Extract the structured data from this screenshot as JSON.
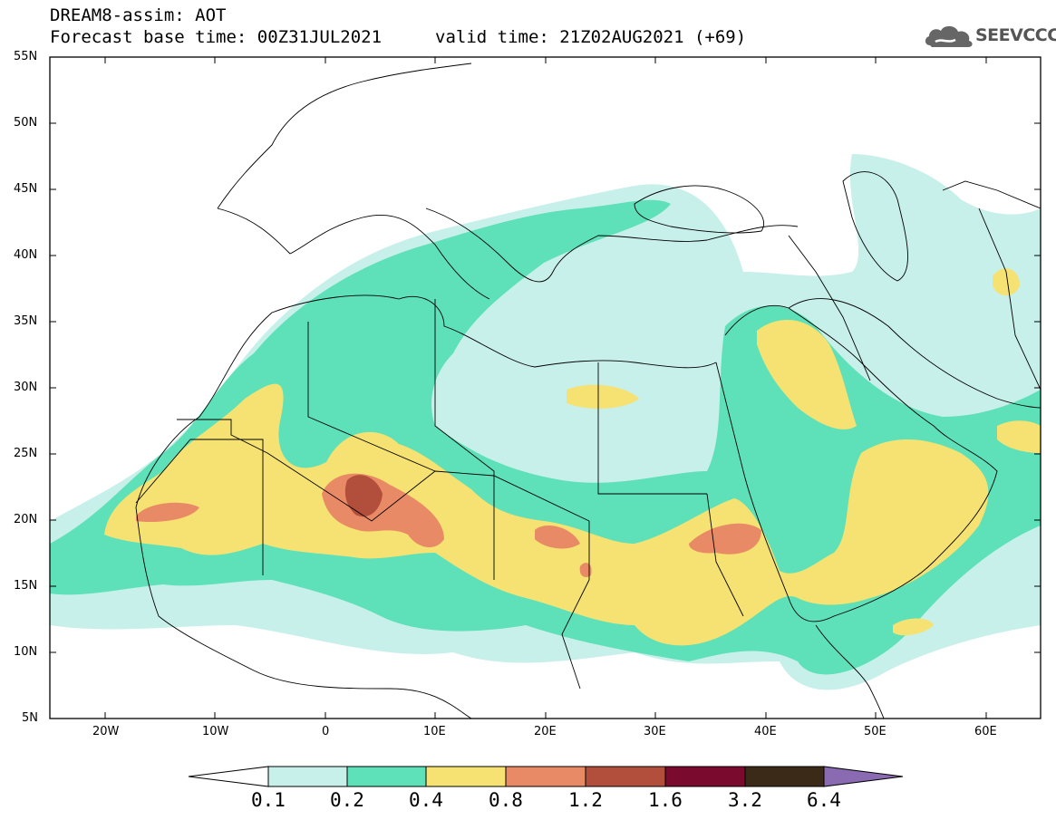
{
  "header": {
    "title": "DREAM8-assim: AOT",
    "base_time": "Forecast base time: 00Z31JUL2021",
    "valid_time": "valid time: 21Z02AUG2021 (+69)"
  },
  "logo": {
    "text": "SEEVCCC",
    "icon": "cloud-logo-icon"
  },
  "map": {
    "region": "North Africa / Middle East",
    "lat_labels": [
      "55N",
      "50N",
      "45N",
      "40N",
      "35N",
      "30N",
      "25N",
      "20N",
      "15N",
      "10N",
      "5N"
    ],
    "lon_labels": [
      "20W",
      "10W",
      "0",
      "10E",
      "20E",
      "30E",
      "40E",
      "50E",
      "60E"
    ],
    "lat_range": [
      5,
      55
    ],
    "lon_range": [
      -25,
      65
    ]
  },
  "colorbar": {
    "labels": [
      "0.1",
      "0.2",
      "0.4",
      "0.8",
      "1.2",
      "1.6",
      "3.2",
      "6.4"
    ],
    "colors": [
      "#ffffff",
      "#c8f0ea",
      "#5ee0b8",
      "#f5e272",
      "#e98a66",
      "#b24f3c",
      "#7a0a2e",
      "#3b2a18",
      "#8a6ab0"
    ]
  }
}
